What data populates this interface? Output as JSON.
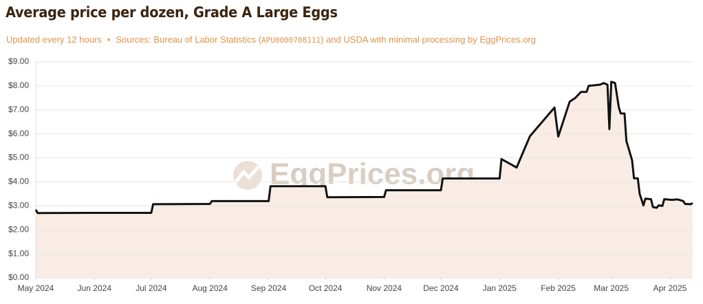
{
  "header": {
    "title": "Average price per dozen, Grade A Large Eggs",
    "update_note": "Updated every 12 hours",
    "separator": "•",
    "sources_prefix": "Sources: Bureau of Labor Statistics (",
    "series_id": "APU0000708111",
    "sources_suffix": ") and USDA with minimal processing by EggPrices.org"
  },
  "chart_data": {
    "type": "line",
    "watermark": "EggPrices.org",
    "x": [
      "2024-05-01",
      "2024-05-02",
      "2024-06-01",
      "2024-07-01",
      "2024-07-02",
      "2024-08-01",
      "2024-08-02",
      "2024-09-01",
      "2024-09-02",
      "2024-10-01",
      "2024-10-02",
      "2024-11-01",
      "2024-11-02",
      "2024-12-01",
      "2024-12-02",
      "2025-01-01",
      "2025-01-02",
      "2025-01-10",
      "2025-01-17",
      "2025-01-30",
      "2025-02-01",
      "2025-02-07",
      "2025-02-10",
      "2025-02-13",
      "2025-02-16",
      "2025-02-17",
      "2025-02-23",
      "2025-02-25",
      "2025-02-27",
      "2025-02-28",
      "2025-03-01",
      "2025-03-03",
      "2025-03-05",
      "2025-03-06",
      "2025-03-08",
      "2025-03-09",
      "2025-03-12",
      "2025-03-13",
      "2025-03-15",
      "2025-03-16",
      "2025-03-18",
      "2025-03-19",
      "2025-03-22",
      "2025-03-23",
      "2025-03-25",
      "2025-03-26",
      "2025-03-28",
      "2025-03-29",
      "2025-04-02",
      "2025-04-05",
      "2025-04-08",
      "2025-04-09",
      "2025-04-12",
      "2025-04-13"
    ],
    "series": [
      {
        "name": "Average price per dozen",
        "color": "#111111",
        "fill": "#f8ece4",
        "values": [
          2.84,
          2.7,
          2.71,
          2.71,
          3.07,
          3.08,
          3.2,
          3.2,
          3.82,
          3.82,
          3.36,
          3.37,
          3.65,
          3.65,
          4.14,
          4.14,
          4.95,
          4.6,
          5.9,
          7.1,
          5.89,
          7.34,
          7.5,
          7.75,
          7.75,
          8.0,
          8.05,
          8.12,
          8.05,
          6.2,
          8.17,
          8.12,
          7.1,
          6.85,
          6.85,
          5.7,
          4.9,
          4.15,
          4.15,
          3.5,
          3.02,
          3.3,
          3.28,
          2.95,
          2.92,
          3.02,
          3.0,
          3.28,
          3.25,
          3.27,
          3.2,
          3.08,
          3.07,
          3.12
        ]
      }
    ],
    "xlim": [
      "2024-05-01",
      "2025-04-13"
    ],
    "xticks": [
      {
        "value": "2024-05-01",
        "label": "May 2024"
      },
      {
        "value": "2024-06-01",
        "label": "Jun 2024"
      },
      {
        "value": "2024-07-01",
        "label": "Jul 2024"
      },
      {
        "value": "2024-08-01",
        "label": "Aug 2024"
      },
      {
        "value": "2024-09-01",
        "label": "Sep 2024"
      },
      {
        "value": "2024-10-01",
        "label": "Oct 2024"
      },
      {
        "value": "2024-11-01",
        "label": "Nov 2024"
      },
      {
        "value": "2024-12-01",
        "label": "Dec 2024"
      },
      {
        "value": "2025-01-01",
        "label": "Jan 2025"
      },
      {
        "value": "2025-02-01",
        "label": "Feb 2025"
      },
      {
        "value": "2025-03-01",
        "label": "Mar 2025"
      },
      {
        "value": "2025-04-01",
        "label": "Apr 2025"
      }
    ],
    "ylim": [
      0,
      9
    ],
    "yticks": [
      {
        "value": 0,
        "label": "$0.00"
      },
      {
        "value": 1,
        "label": "$1.00"
      },
      {
        "value": 2,
        "label": "$2.00"
      },
      {
        "value": 3,
        "label": "$3.00"
      },
      {
        "value": 4,
        "label": "$4.00"
      },
      {
        "value": 5,
        "label": "$5.00"
      },
      {
        "value": 6,
        "label": "$6.00"
      },
      {
        "value": 7,
        "label": "$7.00"
      },
      {
        "value": 8,
        "label": "$8.00"
      },
      {
        "value": 9,
        "label": "$9.00"
      }
    ],
    "grid": true
  }
}
